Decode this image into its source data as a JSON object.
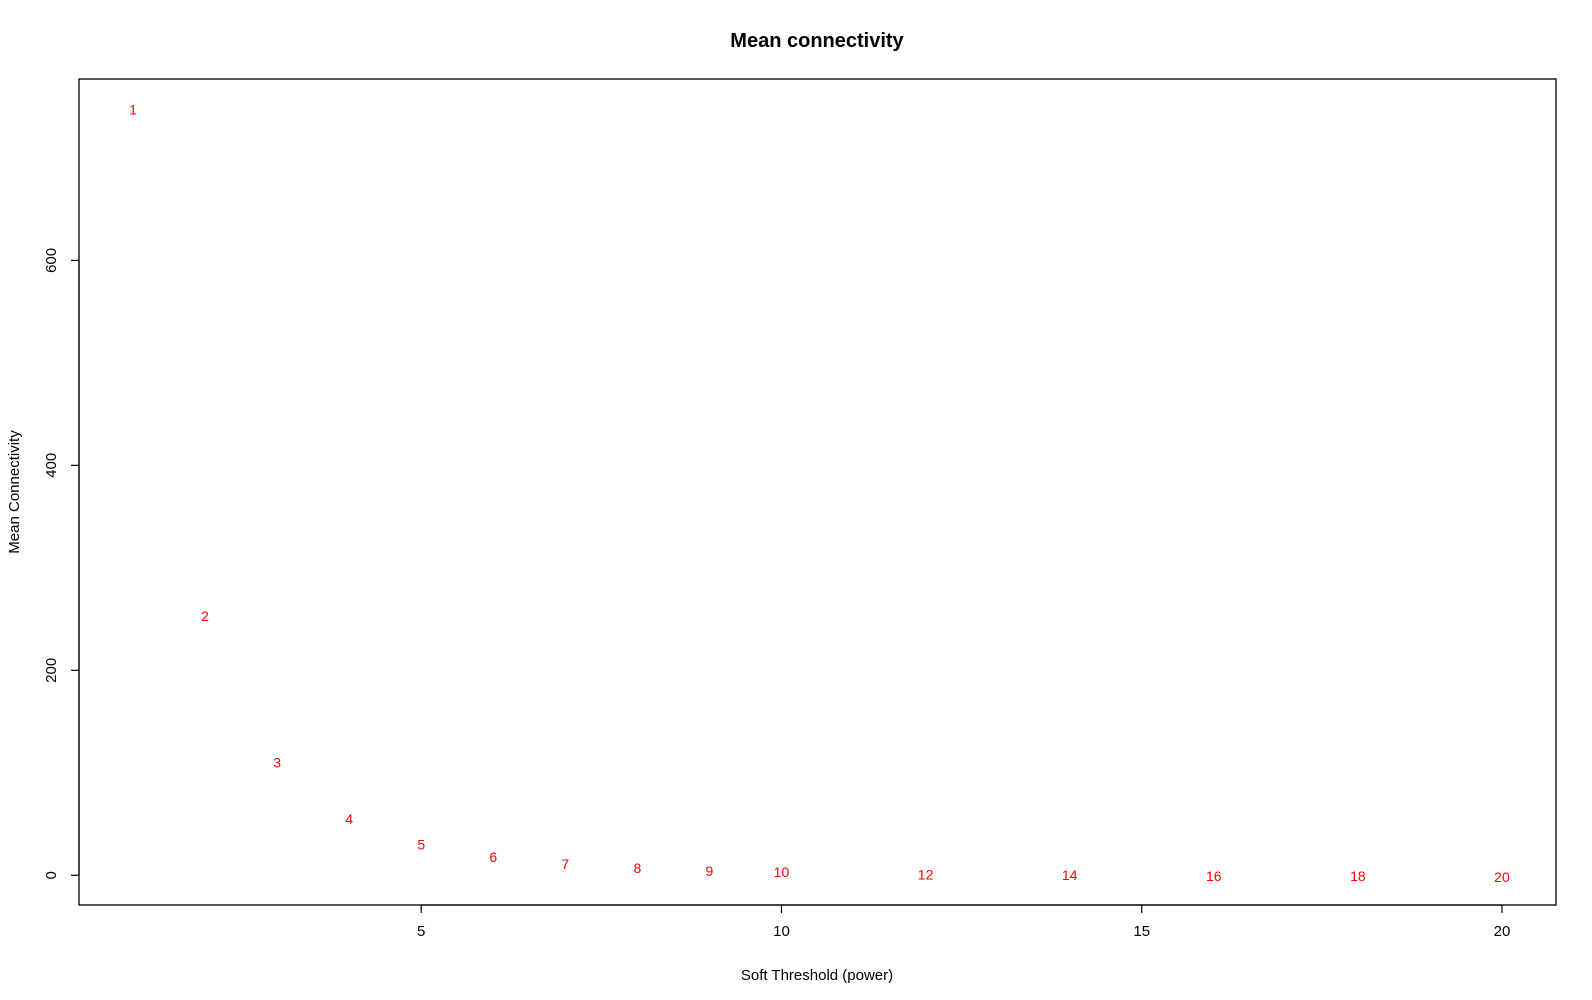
{
  "chart_data": {
    "type": "scatter",
    "title": "Mean connectivity",
    "xlabel": "Soft Threshold (power)",
    "ylabel": "Mean Connectivity",
    "xlim": [
      0.25,
      20.75
    ],
    "ylim": [
      -29,
      777
    ],
    "x_ticks": [
      5,
      10,
      15,
      20
    ],
    "y_ticks": [
      0,
      200,
      400,
      600
    ],
    "grid": false,
    "point_color": "#ff0000",
    "marker": "text-labels",
    "points": [
      {
        "x": 1,
        "y": 747,
        "label": "1"
      },
      {
        "x": 2,
        "y": 253,
        "label": "2"
      },
      {
        "x": 3,
        "y": 110,
        "label": "3"
      },
      {
        "x": 4,
        "y": 55,
        "label": "4"
      },
      {
        "x": 5,
        "y": 30,
        "label": "5"
      },
      {
        "x": 6,
        "y": 18,
        "label": "6"
      },
      {
        "x": 7,
        "y": 11,
        "label": "7"
      },
      {
        "x": 8,
        "y": 7,
        "label": "8"
      },
      {
        "x": 9,
        "y": 4,
        "label": "9"
      },
      {
        "x": 10,
        "y": 3,
        "label": "10"
      },
      {
        "x": 12,
        "y": 1,
        "label": "12"
      },
      {
        "x": 14,
        "y": 0.5,
        "label": "14"
      },
      {
        "x": 16,
        "y": -0.5,
        "label": "16"
      },
      {
        "x": 18,
        "y": -0.5,
        "label": "18"
      },
      {
        "x": 20,
        "y": -1.5,
        "label": "20"
      }
    ]
  }
}
